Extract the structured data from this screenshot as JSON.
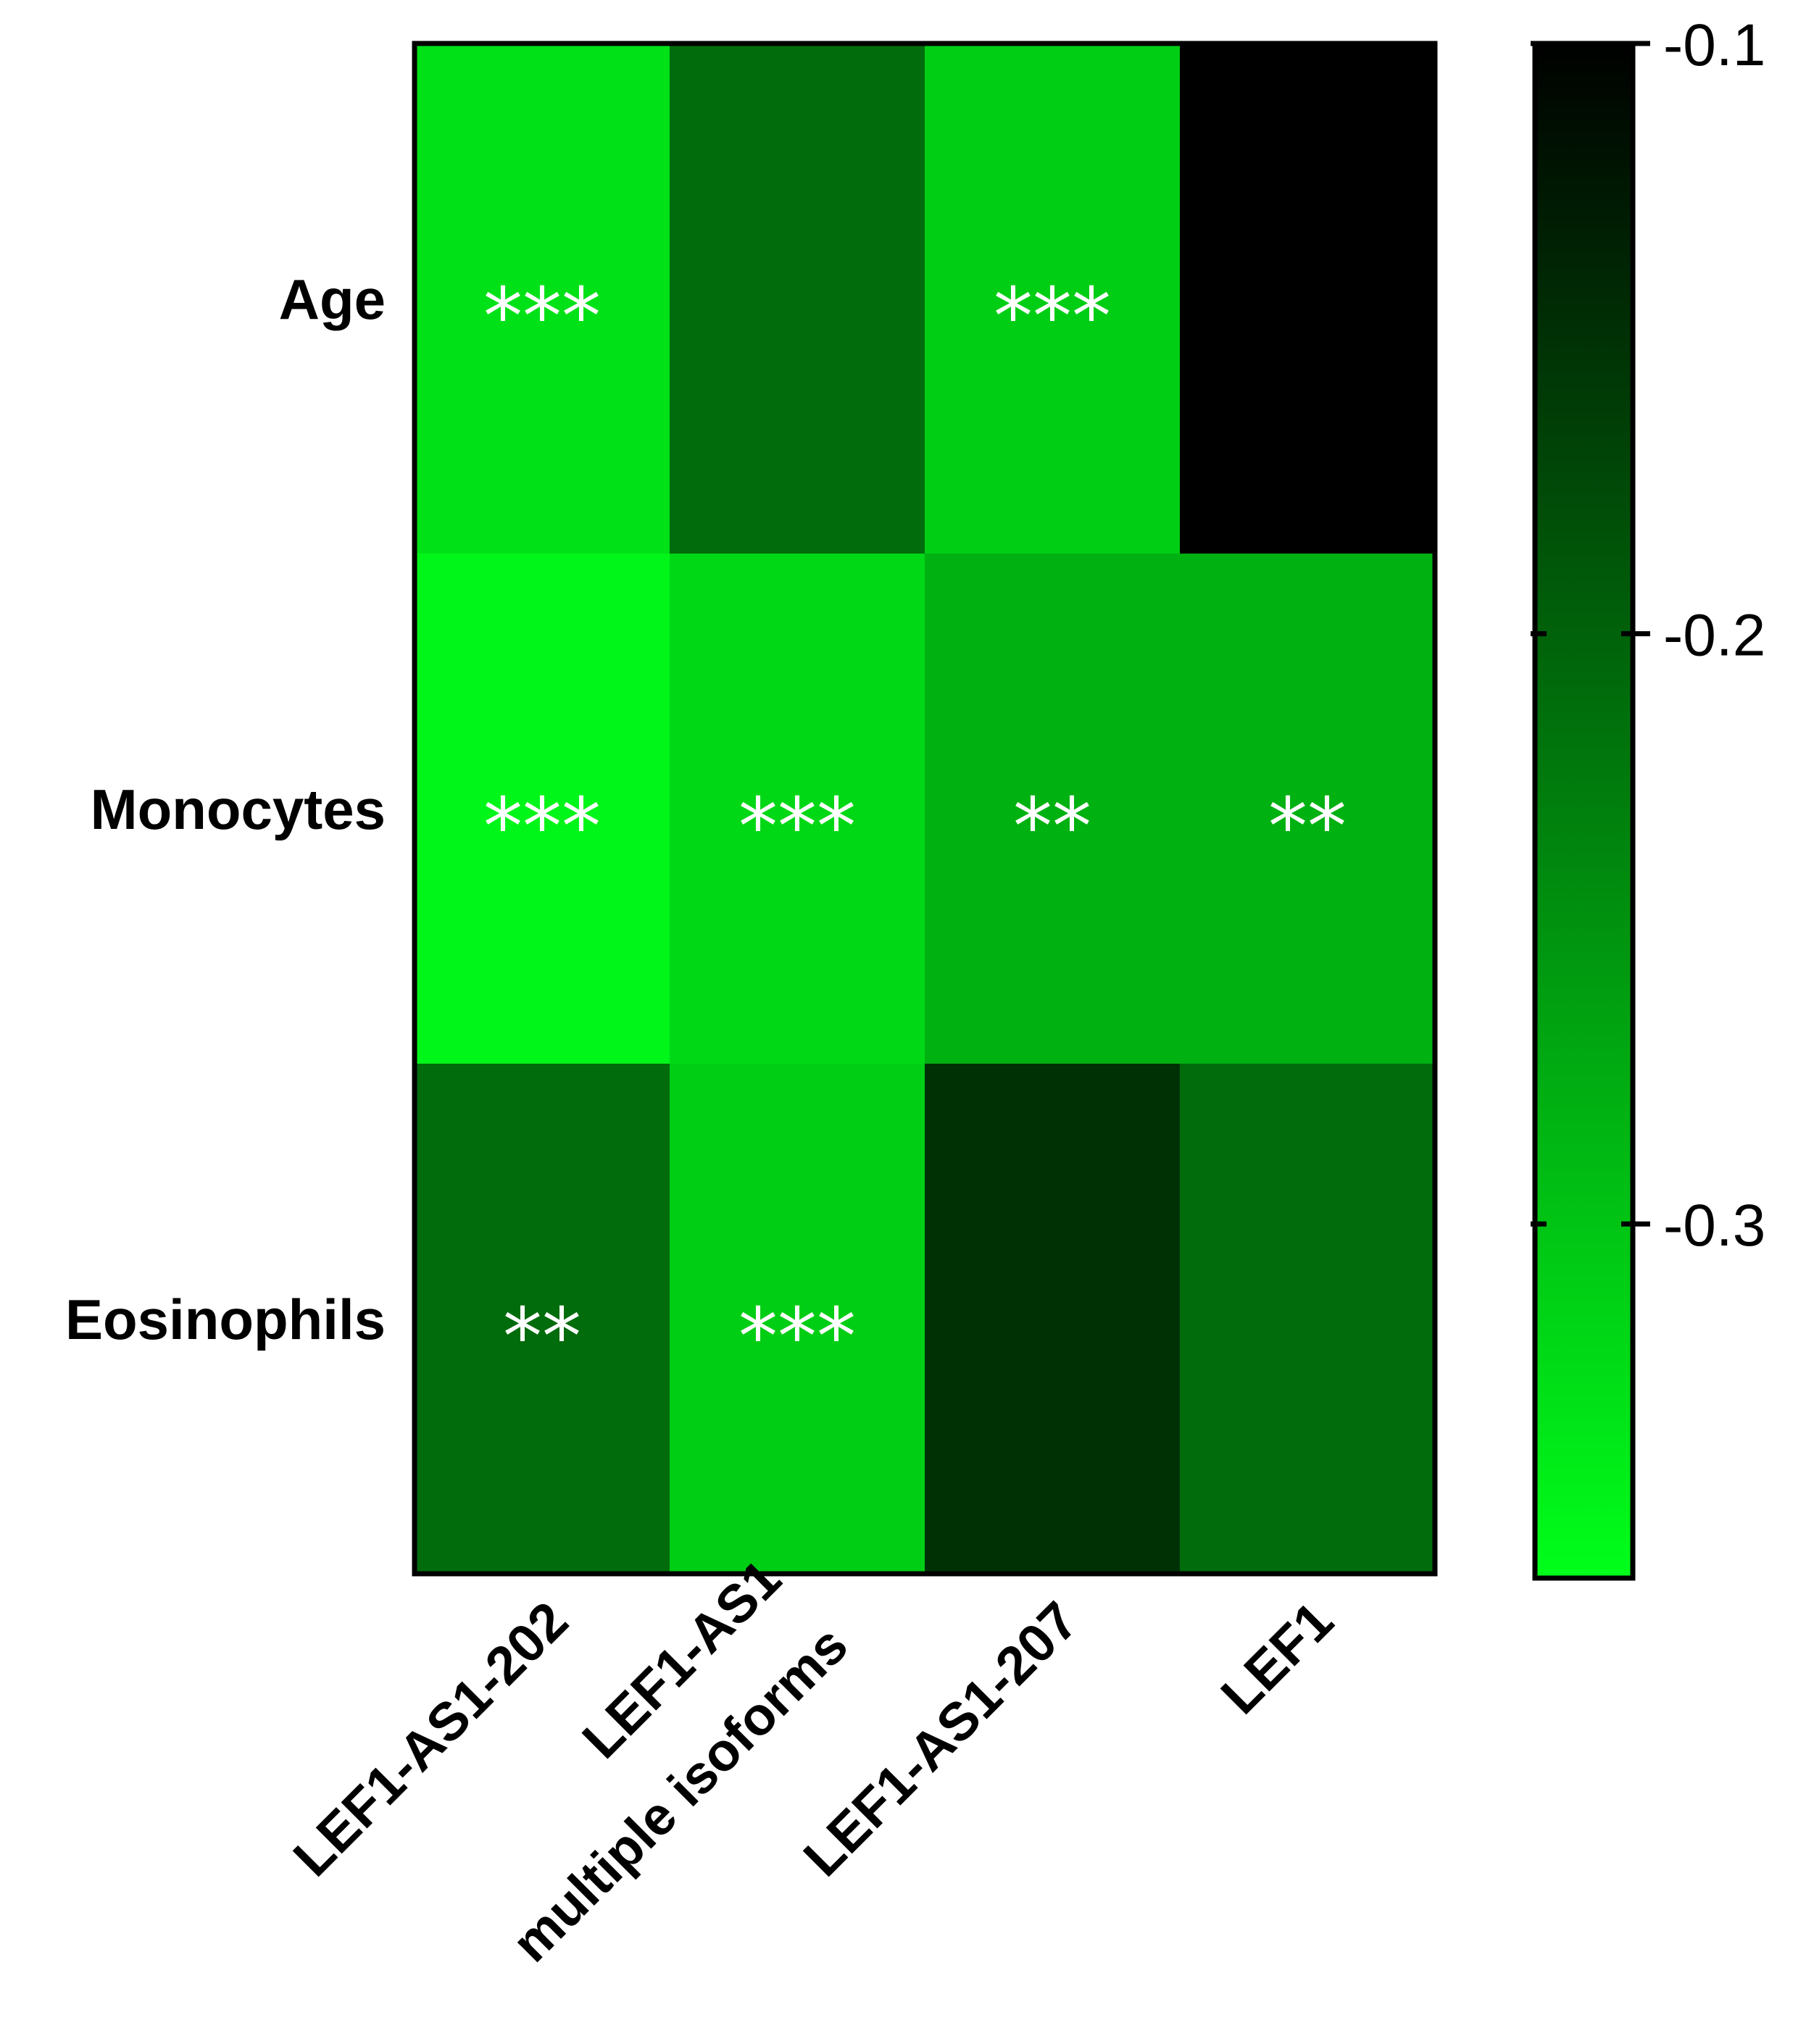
{
  "chart_data": {
    "type": "heatmap",
    "title": "",
    "xlabel": "",
    "ylabel": "",
    "columns": [
      "LEF1-AS1-202",
      "LEF1-AS1\nmultiple isoforms",
      "LEF1-AS1-207",
      "LEF1"
    ],
    "rows": [
      "Age",
      "Monocytes",
      "Eosinophils"
    ],
    "values": [
      [
        -0.33,
        -0.21,
        -0.31,
        -0.1
      ],
      [
        -0.35,
        -0.32,
        -0.28,
        -0.28
      ],
      [
        -0.21,
        -0.31,
        -0.15,
        -0.21
      ]
    ],
    "significance": [
      [
        "***",
        "",
        "***",
        ""
      ],
      [
        "***",
        "***",
        "**",
        "**"
      ],
      [
        "**",
        "***",
        "",
        ""
      ]
    ],
    "colorbar": {
      "range": [
        -0.36,
        -0.1
      ],
      "ticks": [
        -0.1,
        -0.2,
        -0.3
      ],
      "tick_labels": [
        "-0.1",
        "-0.2",
        "-0.3"
      ],
      "color_low": "#00ff1a",
      "color_high": "#000000"
    }
  }
}
